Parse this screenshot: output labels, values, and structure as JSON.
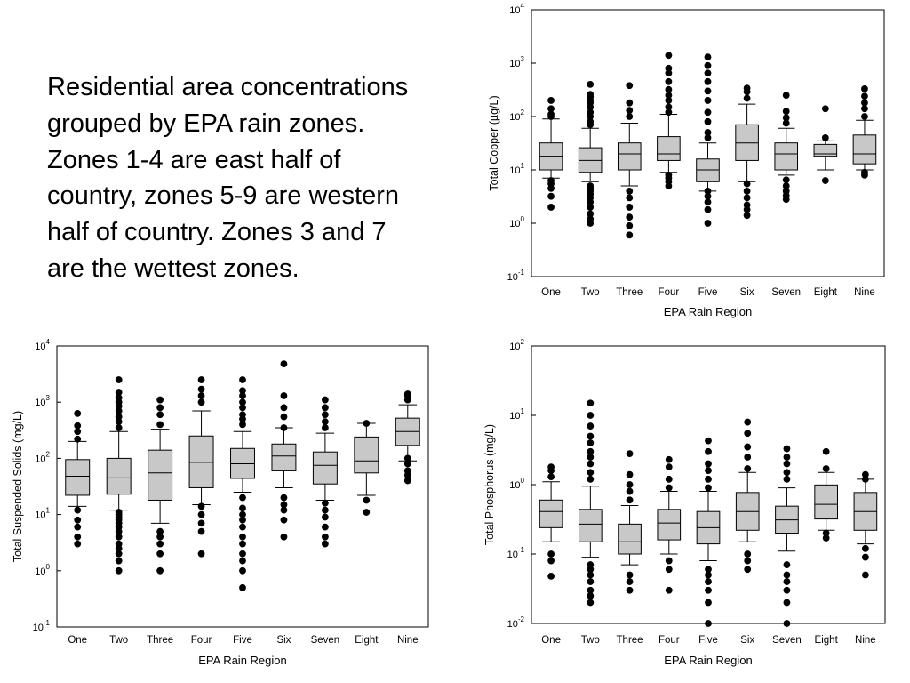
{
  "intro": {
    "text": "Residential area concentrations grouped by EPA rain zones. Zones 1-4 are east half of country, zones 5-9 are western half of country. Zones 3 and 7 are the wettest zones."
  },
  "colors": {
    "box_fill": "#c8c8c8",
    "outline": "#000000",
    "outlier": "#000000"
  },
  "chart_data": [
    {
      "id": "copper",
      "type": "box",
      "ylabel": "Total Copper (µg/L)",
      "xlabel": "EPA Rain Region",
      "yscale": "log",
      "ylim": [
        0.1,
        10000
      ],
      "ytick_values": [
        0.1,
        1,
        10,
        100,
        1000,
        10000
      ],
      "ytick_labels": [
        {
          "base": "10",
          "exp": "-1"
        },
        {
          "base": "10",
          "exp": "0"
        },
        {
          "base": "10",
          "exp": "1"
        },
        {
          "base": "10",
          "exp": "2"
        },
        {
          "base": "10",
          "exp": "3"
        },
        {
          "base": "10",
          "exp": "4"
        }
      ],
      "categories": [
        "One",
        "Two",
        "Three",
        "Four",
        "Five",
        "Six",
        "Seven",
        "Eight",
        "Nine"
      ],
      "boxes": [
        {
          "whislo": 7,
          "q1": 10,
          "med": 18,
          "q3": 32,
          "whishi": 90
        },
        {
          "whislo": 6,
          "q1": 9,
          "med": 15,
          "q3": 26,
          "whishi": 60
        },
        {
          "whislo": 5,
          "q1": 10,
          "med": 20,
          "q3": 32,
          "whishi": 75
        },
        {
          "whislo": 9,
          "q1": 15,
          "med": 20,
          "q3": 42,
          "whishi": 110
        },
        {
          "whislo": 4,
          "q1": 6,
          "med": 10,
          "q3": 16,
          "whishi": 32
        },
        {
          "whislo": 6,
          "q1": 15,
          "med": 32,
          "q3": 70,
          "whishi": 170
        },
        {
          "whislo": 8,
          "q1": 10,
          "med": 20,
          "q3": 32,
          "whishi": 60
        },
        {
          "whislo": 10,
          "q1": 18,
          "med": 20,
          "q3": 30,
          "whishi": 35
        },
        {
          "whislo": 10,
          "q1": 13,
          "med": 20,
          "q3": 45,
          "whishi": 85
        }
      ],
      "outliers": [
        [
          2,
          3.2,
          4.5,
          5.5,
          6.3,
          100,
          110,
          140,
          200
        ],
        [
          1,
          1.2,
          1.5,
          2,
          2.5,
          3,
          3.5,
          4,
          4.5,
          5,
          70,
          80,
          100,
          120,
          150,
          180,
          200,
          230,
          260,
          400
        ],
        [
          0.6,
          0.9,
          1.3,
          2,
          3,
          4,
          100,
          130,
          180,
          380
        ],
        [
          5,
          6,
          7,
          8,
          120,
          150,
          200,
          250,
          320,
          450,
          650,
          800,
          1400
        ],
        [
          1,
          1.8,
          2.5,
          3.2,
          4,
          40,
          50,
          80,
          120,
          200,
          300,
          450,
          650,
          900,
          1300
        ],
        [
          1.4,
          1.8,
          2.2,
          3,
          4,
          5.5,
          220,
          290,
          340
        ],
        [
          2.8,
          3.3,
          4,
          5,
          6.5,
          75,
          95,
          125,
          250
        ],
        [
          6.3,
          40,
          140
        ],
        [
          8,
          9,
          100,
          140,
          180,
          240,
          330
        ]
      ]
    },
    {
      "id": "tss",
      "type": "box",
      "ylabel": "Total Suspended Solids (mg/L)",
      "xlabel": "EPA Rain Region",
      "yscale": "log",
      "ylim": [
        0.1,
        10000
      ],
      "ytick_values": [
        0.1,
        1,
        10,
        100,
        1000,
        10000
      ],
      "ytick_labels": [
        {
          "base": "10",
          "exp": "-1"
        },
        {
          "base": "10",
          "exp": "0"
        },
        {
          "base": "10",
          "exp": "1"
        },
        {
          "base": "10",
          "exp": "2"
        },
        {
          "base": "10",
          "exp": "3"
        },
        {
          "base": "10",
          "exp": "4"
        }
      ],
      "categories": [
        "One",
        "Two",
        "Three",
        "Four",
        "Five",
        "Six",
        "Seven",
        "Eight",
        "Nine"
      ],
      "boxes": [
        {
          "whislo": 14,
          "q1": 22,
          "med": 48,
          "q3": 95,
          "whishi": 200
        },
        {
          "whislo": 12,
          "q1": 23,
          "med": 45,
          "q3": 100,
          "whishi": 300
        },
        {
          "whislo": 7,
          "q1": 18,
          "med": 55,
          "q3": 140,
          "whishi": 330
        },
        {
          "whislo": 15,
          "q1": 30,
          "med": 85,
          "q3": 250,
          "whishi": 700
        },
        {
          "whislo": 25,
          "q1": 44,
          "med": 80,
          "q3": 150,
          "whishi": 300
        },
        {
          "whislo": 30,
          "q1": 60,
          "med": 110,
          "q3": 180,
          "whishi": 350
        },
        {
          "whislo": 18,
          "q1": 35,
          "med": 75,
          "q3": 130,
          "whishi": 280
        },
        {
          "whislo": 22,
          "q1": 55,
          "med": 90,
          "q3": 240,
          "whishi": 420
        },
        {
          "whislo": 90,
          "q1": 170,
          "med": 300,
          "q3": 520,
          "whishi": 900
        }
      ],
      "outliers": [
        [
          3,
          4,
          6,
          8,
          12,
          220,
          300,
          380,
          630
        ],
        [
          1,
          1.5,
          2,
          2.5,
          3,
          4,
          5,
          6,
          7,
          8,
          9,
          10,
          11,
          350,
          450,
          550,
          700,
          850,
          1000,
          1200,
          1500,
          2500
        ],
        [
          1,
          2,
          3,
          4,
          5,
          400,
          600,
          800,
          1100
        ],
        [
          2,
          5,
          7,
          10,
          14,
          1000,
          1300,
          1700,
          2500
        ],
        [
          0.5,
          1,
          1.5,
          2,
          3,
          4,
          6,
          8,
          10,
          13,
          20,
          400,
          500,
          600,
          800,
          1000,
          1300,
          1600,
          2500
        ],
        [
          4,
          8,
          12,
          15,
          20,
          350,
          550,
          800,
          1300,
          4800
        ],
        [
          3,
          4,
          6,
          9,
          12,
          16,
          350,
          450,
          600,
          800,
          1100
        ],
        [
          11,
          18,
          420
        ],
        [
          40,
          50,
          60,
          80,
          100,
          1100,
          1300,
          1400
        ]
      ]
    },
    {
      "id": "phosphorus",
      "type": "box",
      "ylabel": "Total Phosphorus (mg/L)",
      "xlabel": "EPA Rain Region",
      "yscale": "log",
      "ylim": [
        0.01,
        100
      ],
      "ytick_values": [
        0.01,
        0.1,
        1,
        10,
        100
      ],
      "ytick_labels": [
        {
          "base": "10",
          "exp": "-2"
        },
        {
          "base": "10",
          "exp": "-1"
        },
        {
          "base": "10",
          "exp": "0"
        },
        {
          "base": "10",
          "exp": "1"
        },
        {
          "base": "10",
          "exp": "2"
        }
      ],
      "categories": [
        "One",
        "Two",
        "Three",
        "Four",
        "Five",
        "Six",
        "Seven",
        "Eight",
        "Nine"
      ],
      "boxes": [
        {
          "whislo": 0.15,
          "q1": 0.24,
          "med": 0.41,
          "q3": 0.6,
          "whishi": 1.1
        },
        {
          "whislo": 0.09,
          "q1": 0.15,
          "med": 0.27,
          "q3": 0.44,
          "whishi": 0.95
        },
        {
          "whislo": 0.07,
          "q1": 0.1,
          "med": 0.15,
          "q3": 0.27,
          "whishi": 0.5
        },
        {
          "whislo": 0.1,
          "q1": 0.16,
          "med": 0.28,
          "q3": 0.44,
          "whishi": 0.8
        },
        {
          "whislo": 0.08,
          "q1": 0.14,
          "med": 0.24,
          "q3": 0.41,
          "whishi": 0.8
        },
        {
          "whislo": 0.15,
          "q1": 0.22,
          "med": 0.41,
          "q3": 0.77,
          "whishi": 1.5
        },
        {
          "whislo": 0.11,
          "q1": 0.2,
          "med": 0.31,
          "q3": 0.49,
          "whishi": 0.9
        },
        {
          "whislo": 0.22,
          "q1": 0.32,
          "med": 0.52,
          "q3": 0.99,
          "whishi": 1.5
        },
        {
          "whislo": 0.14,
          "q1": 0.22,
          "med": 0.41,
          "q3": 0.77,
          "whishi": 1.2
        }
      ],
      "outliers": [
        [
          0.048,
          0.08,
          0.1,
          1.3,
          1.6,
          1.8
        ],
        [
          0.02,
          0.025,
          0.03,
          0.04,
          0.05,
          0.06,
          0.07,
          1.2,
          1.5,
          2,
          2.5,
          3,
          4,
          5,
          7,
          10,
          15
        ],
        [
          0.03,
          0.04,
          0.05,
          0.6,
          0.8,
          1,
          1.4,
          2.8
        ],
        [
          0.03,
          0.06,
          0.08,
          0.9,
          1.2,
          1.8,
          2.3
        ],
        [
          0.01,
          0.02,
          0.03,
          0.04,
          0.05,
          0.06,
          0.9,
          1.2,
          1.6,
          2,
          3,
          4.3
        ],
        [
          0.06,
          0.08,
          0.1,
          1.7,
          2.5,
          3.5,
          5.5,
          8
        ],
        [
          0.01,
          0.02,
          0.03,
          0.04,
          0.05,
          0.07,
          1.2,
          1.5,
          2,
          2.5,
          3.3
        ],
        [
          0.17,
          0.2,
          1.7,
          3
        ],
        [
          0.05,
          0.09,
          0.12,
          1.2,
          1.4
        ]
      ]
    }
  ]
}
